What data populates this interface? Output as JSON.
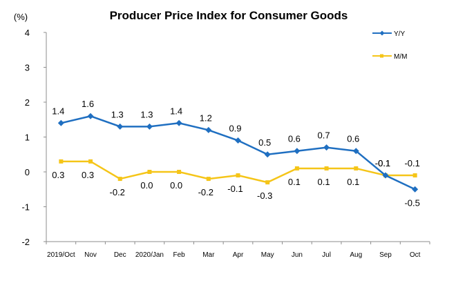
{
  "chart_data": {
    "type": "line",
    "title": "Producer Price Index for Consumer Goods",
    "ylabel": "(%)",
    "xlabel": "",
    "ylim": [
      -2,
      4
    ],
    "yticks": [
      4,
      3,
      2,
      1,
      0,
      -1,
      -2
    ],
    "categories": [
      "2019/Oct",
      "Nov",
      "Dec",
      "2020/Jan",
      "Feb",
      "Mar",
      "Apr",
      "May",
      "Jun",
      "Jul",
      "Aug",
      "Sep",
      "Oct"
    ],
    "series": [
      {
        "name": "Y/Y",
        "color": "#1F6FC1",
        "marker": "diamond",
        "values": [
          1.4,
          1.6,
          1.3,
          1.3,
          1.4,
          1.2,
          0.9,
          0.5,
          0.6,
          0.7,
          0.6,
          -0.1,
          -0.5
        ],
        "labels": [
          "1.4",
          "1.6",
          "1.3",
          "1.3",
          "1.4",
          "1.2",
          "0.9",
          "0.5",
          "0.6",
          "0.7",
          "0.6",
          "-0.1",
          "-0.5"
        ]
      },
      {
        "name": "M/M",
        "color": "#F5C518",
        "marker": "square",
        "values": [
          0.3,
          0.3,
          -0.2,
          0.0,
          0.0,
          -0.2,
          -0.1,
          -0.3,
          0.1,
          0.1,
          0.1,
          -0.1,
          -0.1
        ],
        "labels": [
          "0.3",
          "0.3",
          "-0.2",
          "0.0",
          "0.0",
          "-0.2",
          "-0.1",
          "-0.3",
          "0.1",
          "0.1",
          "0.1",
          "-0.1",
          "-0.1"
        ]
      }
    ],
    "grid": false,
    "legend_position": "top-right"
  }
}
